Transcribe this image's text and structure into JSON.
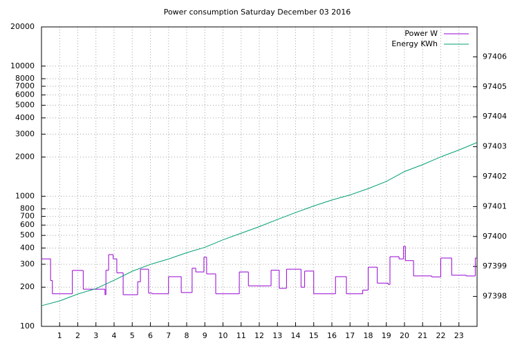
{
  "chart_data": {
    "type": "line",
    "title": "Power consumption Saturday December 03 2016",
    "xlim": [
      0,
      24
    ],
    "xticks": [
      1,
      2,
      3,
      4,
      5,
      6,
      7,
      8,
      9,
      10,
      11,
      12,
      13,
      14,
      15,
      16,
      17,
      18,
      19,
      20,
      21,
      22,
      23
    ],
    "ylim": [
      100,
      20000
    ],
    "y_log_scale": true,
    "yticks": [
      100,
      200,
      300,
      400,
      500,
      600,
      700,
      800,
      1000,
      2000,
      3000,
      4000,
      5000,
      6000,
      7000,
      8000,
      10000,
      20000
    ],
    "y2lim": [
      97397,
      97407
    ],
    "y2ticks": [
      97398,
      97399,
      97400,
      97401,
      97402,
      97403,
      97404,
      97405,
      97406
    ],
    "grid": true,
    "legend": "top-right",
    "series": [
      {
        "name": "Power W",
        "color": "#9400d3",
        "step": true,
        "x": [
          0,
          0.5,
          0.6,
          1.7,
          2.3,
          3.5,
          3.55,
          3.7,
          3.95,
          4.15,
          4.5,
          5.3,
          5.45,
          5.9,
          6.1,
          7.0,
          7.7,
          8.3,
          8.5,
          8.95,
          9.1,
          9.6,
          10.9,
          11.4,
          12.5,
          12.65,
          13.1,
          13.5,
          14.3,
          14.5,
          15.0,
          16.2,
          16.8,
          17.7,
          18.0,
          18.5,
          19.1,
          19.2,
          19.7,
          19.95,
          20.05,
          20.5,
          21.5,
          22.0,
          22.6,
          23.4,
          23.9
        ],
        "values": [
          330,
          225,
          178,
          269,
          193,
          175,
          270,
          356,
          330,
          258,
          175,
          220,
          275,
          180,
          178,
          241,
          182,
          280,
          262,
          340,
          253,
          178,
          262,
          205,
          205,
          270,
          196,
          275,
          200,
          266,
          178,
          241,
          178,
          190,
          285,
          215,
          210,
          343,
          330,
          412,
          320,
          244,
          240,
          335,
          247,
          244,
          335
        ]
      },
      {
        "name": "Energy KWh",
        "color": "#009e73",
        "axis": "y2",
        "x": [
          0,
          1,
          2,
          3,
          4,
          5,
          6,
          7,
          8,
          9,
          10,
          11,
          12,
          13,
          14,
          15,
          16,
          17,
          18,
          19,
          20,
          21,
          22,
          23,
          24
        ],
        "values": [
          97397.69,
          97397.85,
          97398.08,
          97398.26,
          97398.54,
          97398.84,
          97399.07,
          97399.25,
          97399.46,
          97399.64,
          97399.89,
          97400.11,
          97400.33,
          97400.57,
          97400.8,
          97401.02,
          97401.22,
          97401.39,
          97401.6,
          97401.84,
          97402.17,
          97402.4,
          97402.66,
          97402.89,
          97403.14
        ]
      }
    ]
  }
}
